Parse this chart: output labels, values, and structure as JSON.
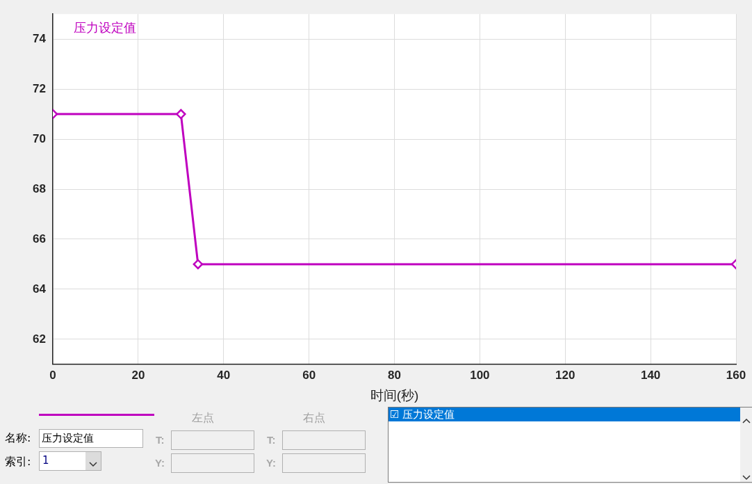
{
  "chart_data": {
    "type": "line",
    "xlabel": "时间(秒)",
    "x": [
      0,
      30,
      34,
      160
    ],
    "series": [
      {
        "name": "压力设定值",
        "color": "#bf00bf",
        "values": [
          71,
          71,
          65,
          65
        ]
      }
    ],
    "xlim": [
      0,
      160
    ],
    "xticks": [
      0,
      20,
      40,
      60,
      80,
      100,
      120,
      140,
      160
    ],
    "ylim": [
      61,
      75
    ],
    "yticks": [
      62,
      64,
      66,
      68,
      70,
      72,
      74
    ],
    "grid": true,
    "legend": "top left",
    "marker": "diamond",
    "line_style": "solid",
    "annotations": [
      "名称:",
      "压力设定值",
      "索引:",
      "1",
      "左点",
      "右点",
      "T:",
      "Y:",
      "T:",
      "Y:",
      "☑ 压力设定值"
    ]
  }
}
